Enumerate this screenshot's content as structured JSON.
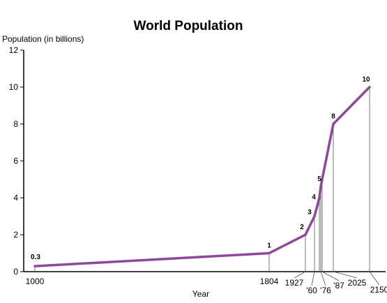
{
  "chart_data": {
    "type": "line",
    "title": "World Population",
    "ylabel": "Population (in billions)",
    "xlabel": "Year",
    "ylim": [
      0,
      12
    ],
    "yticks": [
      0,
      2,
      4,
      6,
      8,
      10,
      12
    ],
    "grid": false,
    "legend": "none",
    "line_color": "#8e479b",
    "series": [
      {
        "values": [
          {
            "year": 1000,
            "x_label": "1000",
            "y": 0.3,
            "y_label": "0.3"
          },
          {
            "year": 1804,
            "x_label": "1804",
            "y": 1,
            "y_label": "1"
          },
          {
            "year": 1927,
            "x_label": "1927",
            "y": 2,
            "y_label": "2"
          },
          {
            "year": 1960,
            "x_label": "'60",
            "y": 3,
            "y_label": "3"
          },
          {
            "year": 1974,
            "x_label": "",
            "y": 4,
            "y_label": "4"
          },
          {
            "year": 1976,
            "x_label": "'76",
            "y": 4.6,
            "y_label": "5"
          },
          {
            "year": 1987,
            "x_label": "'87",
            "y": 5,
            "y_label": ""
          },
          {
            "year": 2025,
            "x_label": "2025",
            "y": 8,
            "y_label": "8"
          },
          {
            "year": 2150,
            "x_label": "2150",
            "y": 10,
            "y_label": "10"
          }
        ]
      }
    ]
  }
}
